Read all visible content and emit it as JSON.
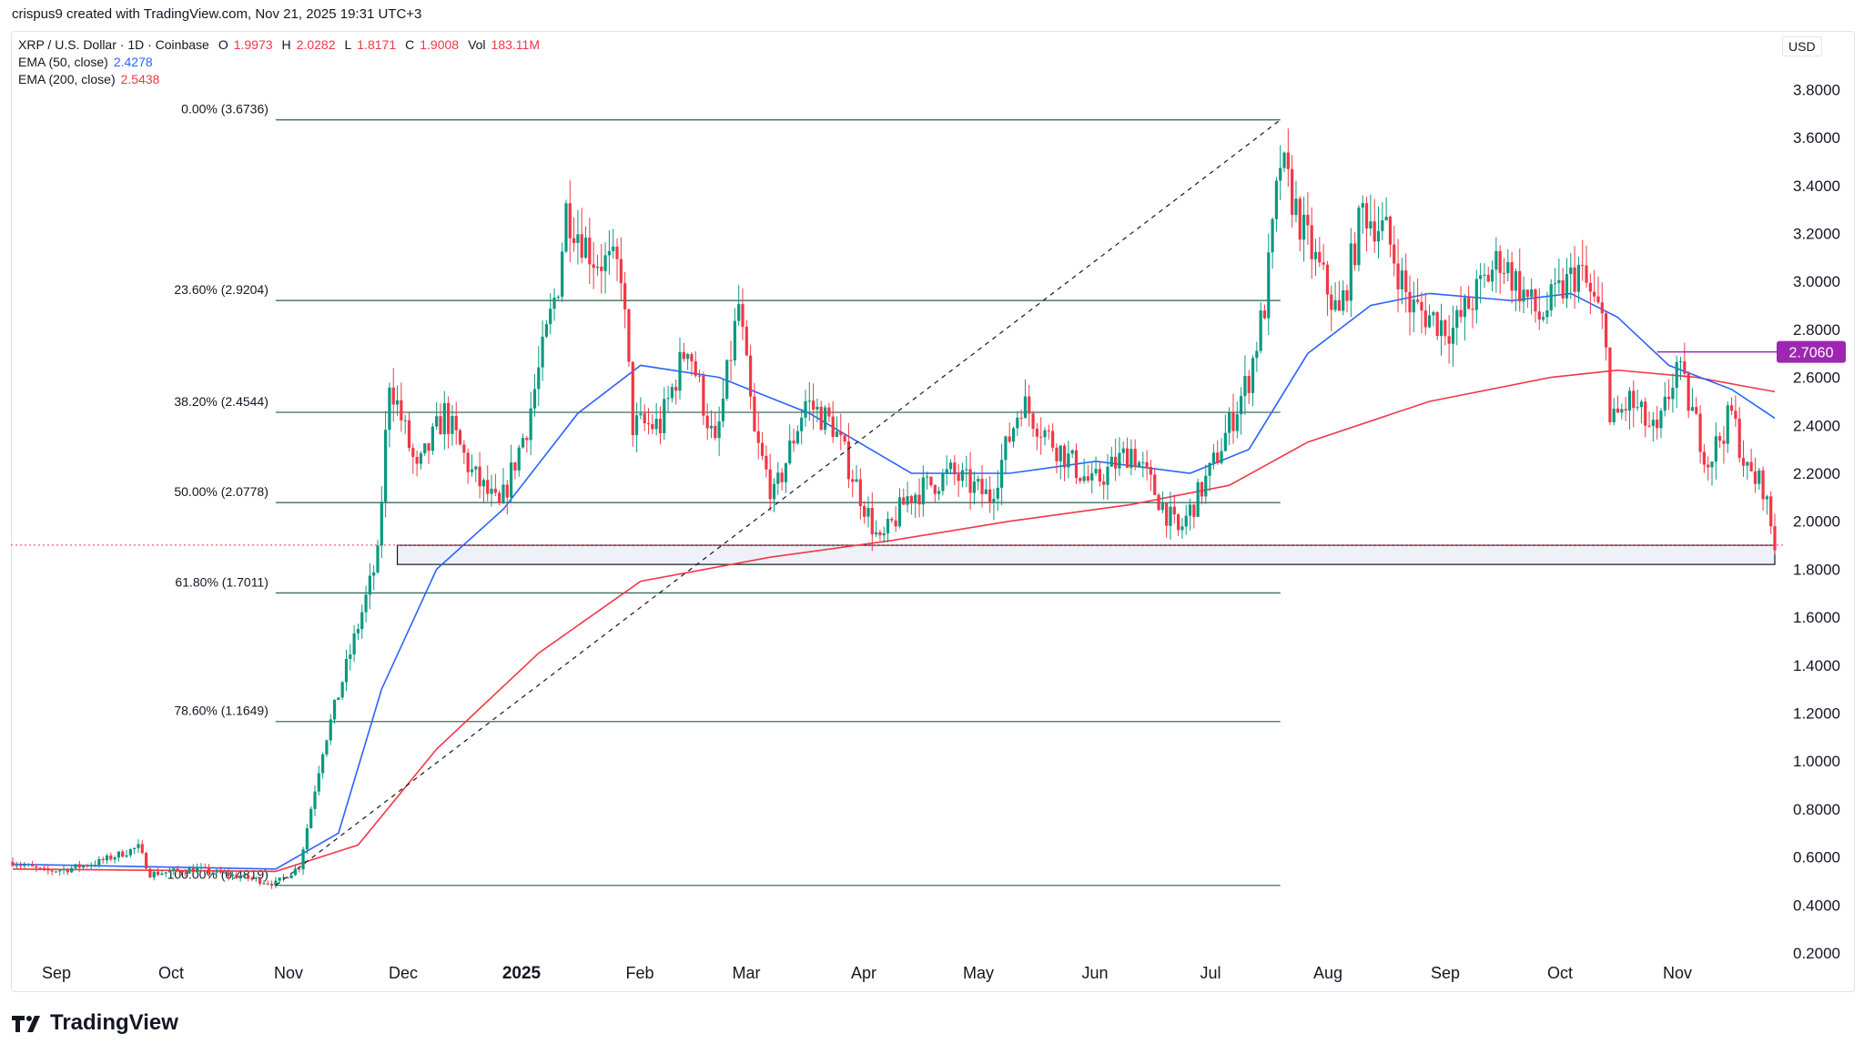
{
  "header": {
    "credit": "crispus9 created with TradingView.com, Nov 21, 2025 19:31 UTC+3"
  },
  "legend": {
    "symbol": "XRP / U.S. Dollar · 1D · Coinbase",
    "open_label": "O",
    "open": "1.9973",
    "high_label": "H",
    "high": "2.0282",
    "low_label": "L",
    "low": "1.8171",
    "close_label": "C",
    "close": "1.9008",
    "vol_label": "Vol",
    "vol": "183.11M",
    "ema50_label": "EMA (50, close)",
    "ema50": "2.4278",
    "ema200_label": "EMA (200, close)",
    "ema200": "2.5438"
  },
  "currency": "USD",
  "brand": "TradingView",
  "colors": {
    "up": "#089981",
    "down": "#f23645",
    "ema50": "#2962ff",
    "ema200": "#f23645",
    "fib": "#3b6e5a",
    "marker": "#9c27b0"
  },
  "chart_data": {
    "type": "candlestick",
    "y_axis": {
      "ticks": [
        "3.8000",
        "3.6000",
        "3.4000",
        "3.2000",
        "3.0000",
        "2.8000",
        "2.6000",
        "2.4000",
        "2.2000",
        "2.0000",
        "1.8000",
        "1.6000",
        "1.4000",
        "1.2000",
        "1.0000",
        "0.8000",
        "0.6000",
        "0.4000",
        "0.2000"
      ],
      "range": [
        0.1,
        3.9
      ]
    },
    "x_axis": {
      "labels": [
        {
          "text": "Sep",
          "bold": false
        },
        {
          "text": "Oct",
          "bold": false
        },
        {
          "text": "Nov",
          "bold": false
        },
        {
          "text": "Dec",
          "bold": false
        },
        {
          "text": "2025",
          "bold": true
        },
        {
          "text": "Feb",
          "bold": false
        },
        {
          "text": "Mar",
          "bold": false
        },
        {
          "text": "Apr",
          "bold": false
        },
        {
          "text": "May",
          "bold": false
        },
        {
          "text": "Jun",
          "bold": false
        },
        {
          "text": "Jul",
          "bold": false
        },
        {
          "text": "Aug",
          "bold": false
        },
        {
          "text": "Sep",
          "bold": false
        },
        {
          "text": "Oct",
          "bold": false
        },
        {
          "text": "Nov",
          "bold": false
        }
      ],
      "range": [
        "2024-08-29",
        "2025-11-21"
      ]
    },
    "fib_levels": [
      {
        "label": "0.00% (3.6736)",
        "value": 3.6736
      },
      {
        "label": "23.60% (2.9204)",
        "value": 2.9204
      },
      {
        "label": "38.20% (2.4544)",
        "value": 2.4544
      },
      {
        "label": "50.00% (2.0778)",
        "value": 2.0778
      },
      {
        "label": "61.80% (1.7011)",
        "value": 1.7011
      },
      {
        "label": "78.60% (1.1649)",
        "value": 1.1649
      },
      {
        "label": "100.00% (0.4819)",
        "value": 0.4819
      }
    ],
    "fib_range": {
      "start": "2024-11-04",
      "end": "2025-07-18"
    },
    "trend_line": {
      "from": {
        "date": "2024-11-04",
        "value": 0.4819
      },
      "to": {
        "date": "2025-07-18",
        "value": 3.6736
      }
    },
    "support_zone": {
      "from": "2024-12-05",
      "to": "2025-11-21",
      "low": 1.82,
      "high": 1.9
    },
    "marker_line": {
      "from": "2025-10-22",
      "to": "2025-11-21",
      "value": 2.706,
      "label": "2.7060"
    },
    "current_price": 1.9008,
    "price_path": [
      [
        "2024-08-29",
        0.58
      ],
      [
        "2024-09-06",
        0.54
      ],
      [
        "2024-09-12",
        0.55
      ],
      [
        "2024-09-20",
        0.58
      ],
      [
        "2024-09-30",
        0.64
      ],
      [
        "2024-10-03",
        0.53
      ],
      [
        "2024-10-15",
        0.55
      ],
      [
        "2024-10-25",
        0.52
      ],
      [
        "2024-11-04",
        0.49
      ],
      [
        "2024-11-10",
        0.56
      ],
      [
        "2024-11-16",
        1.05
      ],
      [
        "2024-11-23",
        1.45
      ],
      [
        "2024-11-30",
        1.85
      ],
      [
        "2024-12-03",
        2.6
      ],
      [
        "2024-12-10",
        2.2
      ],
      [
        "2024-12-17",
        2.45
      ],
      [
        "2024-12-24",
        2.2
      ],
      [
        "2024-12-31",
        2.05
      ],
      [
        "2025-01-07",
        2.4
      ],
      [
        "2025-01-15",
        3.0
      ],
      [
        "2025-01-17",
        3.3
      ],
      [
        "2025-01-24",
        3.1
      ],
      [
        "2025-01-31",
        3.05
      ],
      [
        "2025-02-03",
        2.4
      ],
      [
        "2025-02-10",
        2.4
      ],
      [
        "2025-02-17",
        2.75
      ],
      [
        "2025-02-24",
        2.3
      ],
      [
        "2025-03-02",
        2.9
      ],
      [
        "2025-03-06",
        2.35
      ],
      [
        "2025-03-11",
        2.1
      ],
      [
        "2025-03-19",
        2.5
      ],
      [
        "2025-03-26",
        2.4
      ],
      [
        "2025-04-07",
        1.9
      ],
      [
        "2025-04-14",
        2.1
      ],
      [
        "2025-04-25",
        2.2
      ],
      [
        "2025-05-05",
        2.1
      ],
      [
        "2025-05-13",
        2.5
      ],
      [
        "2025-05-20",
        2.35
      ],
      [
        "2025-05-31",
        2.15
      ],
      [
        "2025-06-10",
        2.3
      ],
      [
        "2025-06-22",
        1.95
      ],
      [
        "2025-06-30",
        2.2
      ],
      [
        "2025-07-10",
        2.6
      ],
      [
        "2025-07-14",
        2.9
      ],
      [
        "2025-07-18",
        3.5
      ],
      [
        "2025-07-24",
        3.2
      ],
      [
        "2025-08-02",
        2.85
      ],
      [
        "2025-08-08",
        3.3
      ],
      [
        "2025-08-14",
        3.2
      ],
      [
        "2025-08-20",
        2.9
      ],
      [
        "2025-08-31",
        2.8
      ],
      [
        "2025-09-12",
        3.1
      ],
      [
        "2025-09-22",
        2.85
      ],
      [
        "2025-10-02",
        3.05
      ],
      [
        "2025-10-09",
        2.8
      ],
      [
        "2025-10-10",
        2.4
      ],
      [
        "2025-10-15",
        2.5
      ],
      [
        "2025-10-22",
        2.35
      ],
      [
        "2025-10-27",
        2.65
      ],
      [
        "2025-11-04",
        2.25
      ],
      [
        "2025-11-10",
        2.45
      ],
      [
        "2025-11-14",
        2.2
      ],
      [
        "2025-11-18",
        2.15
      ],
      [
        "2025-11-21",
        1.9008
      ]
    ],
    "ema50_path": [
      [
        "2024-08-29",
        0.57
      ],
      [
        "2024-11-04",
        0.55
      ],
      [
        "2024-11-20",
        0.7
      ],
      [
        "2024-12-01",
        1.3
      ],
      [
        "2024-12-15",
        1.8
      ],
      [
        "2025-01-01",
        2.05
      ],
      [
        "2025-01-20",
        2.45
      ],
      [
        "2025-02-05",
        2.65
      ],
      [
        "2025-02-25",
        2.6
      ],
      [
        "2025-03-20",
        2.45
      ],
      [
        "2025-04-15",
        2.2
      ],
      [
        "2025-05-10",
        2.2
      ],
      [
        "2025-06-01",
        2.25
      ],
      [
        "2025-06-25",
        2.2
      ],
      [
        "2025-07-10",
        2.3
      ],
      [
        "2025-07-25",
        2.7
      ],
      [
        "2025-08-10",
        2.9
      ],
      [
        "2025-08-25",
        2.95
      ],
      [
        "2025-09-15",
        2.92
      ],
      [
        "2025-09-30",
        2.95
      ],
      [
        "2025-10-12",
        2.85
      ],
      [
        "2025-10-25",
        2.65
      ],
      [
        "2025-11-10",
        2.55
      ],
      [
        "2025-11-21",
        2.43
      ]
    ],
    "ema200_path": [
      [
        "2024-08-29",
        0.55
      ],
      [
        "2024-11-04",
        0.54
      ],
      [
        "2024-11-25",
        0.65
      ],
      [
        "2024-12-15",
        1.05
      ],
      [
        "2025-01-10",
        1.45
      ],
      [
        "2025-02-05",
        1.75
      ],
      [
        "2025-03-10",
        1.85
      ],
      [
        "2025-04-10",
        1.92
      ],
      [
        "2025-05-10",
        2.0
      ],
      [
        "2025-06-10",
        2.07
      ],
      [
        "2025-07-05",
        2.15
      ],
      [
        "2025-07-25",
        2.33
      ],
      [
        "2025-08-25",
        2.5
      ],
      [
        "2025-09-25",
        2.6
      ],
      [
        "2025-10-12",
        2.63
      ],
      [
        "2025-11-01",
        2.6
      ],
      [
        "2025-11-21",
        2.54
      ]
    ]
  }
}
